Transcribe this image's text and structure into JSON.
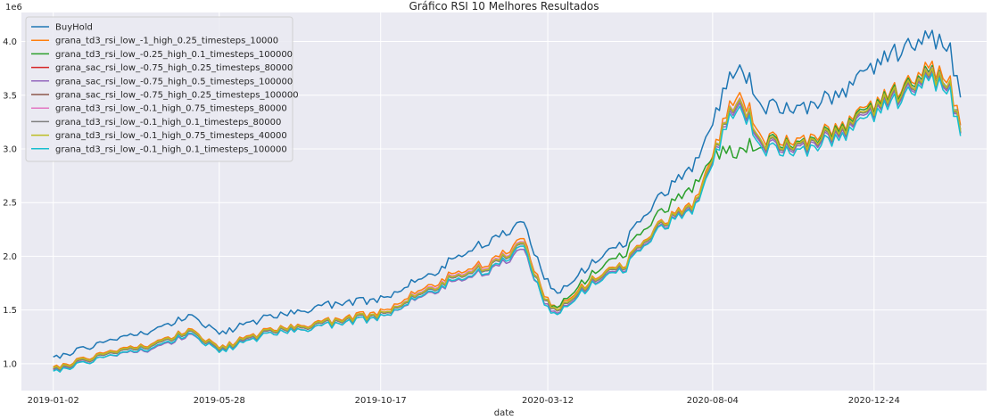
{
  "chart_data": {
    "type": "line",
    "title": "Gráfico RSI 10 Melhores Resultados",
    "xlabel": "date",
    "ylabel": "",
    "y_scale_label": "1e6",
    "x_tick_labels": [
      "2019-01-02",
      "2019-05-28",
      "2019-10-17",
      "2020-03-12",
      "2020-08-04",
      "2020-12-24"
    ],
    "y_ticks": [
      1.0,
      1.5,
      2.0,
      2.5,
      3.0,
      3.5,
      4.0
    ],
    "ylim": [
      0.75,
      4.27
    ],
    "grid": true,
    "legend_position": "top-left",
    "x": [
      "2019-01-02",
      "2019-02-15",
      "2019-04-01",
      "2019-05-01",
      "2019-05-28",
      "2019-07-15",
      "2019-09-01",
      "2019-10-17",
      "2019-12-01",
      "2020-01-20",
      "2020-02-20",
      "2020-03-12",
      "2020-03-23",
      "2020-04-20",
      "2020-05-20",
      "2020-06-20",
      "2020-07-20",
      "2020-08-04",
      "2020-08-25",
      "2020-09-20",
      "2020-10-20",
      "2020-11-20",
      "2020-12-24",
      "2021-01-20",
      "2021-02-10",
      "2021-03-01",
      "2021-03-10"
    ],
    "series": [
      {
        "name": "BuyHold",
        "color": "#1f77b4",
        "values": [
          1.05,
          1.2,
          1.3,
          1.45,
          1.28,
          1.45,
          1.55,
          1.6,
          1.85,
          2.15,
          2.3,
          1.75,
          1.68,
          1.95,
          2.15,
          2.55,
          2.85,
          3.3,
          3.8,
          3.4,
          3.35,
          3.5,
          3.75,
          3.95,
          4.08,
          3.9,
          3.48
        ]
      },
      {
        "name": "grana_td3_rsi_low_-1_high_0.25_timesteps_10000",
        "color": "#ff7f0e",
        "values": [
          0.96,
          1.1,
          1.18,
          1.32,
          1.15,
          1.33,
          1.4,
          1.48,
          1.75,
          1.95,
          2.15,
          1.58,
          1.55,
          1.8,
          1.95,
          2.3,
          2.5,
          3.0,
          3.55,
          3.1,
          3.05,
          3.2,
          3.4,
          3.6,
          3.8,
          3.6,
          3.22
        ]
      },
      {
        "name": "grana_td3_rsi_low_-0.25_high_0.1_timesteps_100000",
        "color": "#2ca02c",
        "values": [
          0.95,
          1.09,
          1.17,
          1.31,
          1.14,
          1.32,
          1.39,
          1.46,
          1.72,
          1.92,
          2.12,
          1.56,
          1.56,
          1.85,
          2.05,
          2.4,
          2.65,
          2.98,
          2.98,
          3.08,
          3.02,
          3.18,
          3.38,
          3.58,
          3.76,
          3.56,
          3.18
        ]
      },
      {
        "name": "grana_sac_rsi_low_-0.75_high_0.25_timesteps_80000",
        "color": "#d62728",
        "values": [
          0.94,
          1.08,
          1.16,
          1.3,
          1.13,
          1.31,
          1.38,
          1.45,
          1.71,
          1.91,
          2.1,
          1.55,
          1.52,
          1.78,
          1.93,
          2.28,
          2.47,
          2.96,
          3.48,
          3.05,
          3.0,
          3.15,
          3.35,
          3.55,
          3.72,
          3.55,
          3.15
        ]
      },
      {
        "name": "grana_sac_rsi_low_-0.75_high_0.5_timesteps_100000",
        "color": "#9467bd",
        "values": [
          0.93,
          1.06,
          1.13,
          1.27,
          1.12,
          1.29,
          1.36,
          1.43,
          1.68,
          1.87,
          2.05,
          1.52,
          1.5,
          1.76,
          1.91,
          2.26,
          2.45,
          2.94,
          3.45,
          3.03,
          2.98,
          3.13,
          3.33,
          3.53,
          3.7,
          3.53,
          3.14
        ]
      },
      {
        "name": "grana_sac_rsi_low_-0.75_high_0.25_timesteps_100000",
        "color": "#8c564b",
        "values": [
          0.94,
          1.08,
          1.16,
          1.3,
          1.13,
          1.31,
          1.38,
          1.45,
          1.71,
          1.91,
          2.1,
          1.55,
          1.52,
          1.78,
          1.93,
          2.28,
          2.47,
          2.96,
          3.48,
          3.05,
          3.0,
          3.15,
          3.35,
          3.55,
          3.72,
          3.55,
          3.15
        ]
      },
      {
        "name": "grana_td3_rsi_low_-0.1_high_0.75_timesteps_80000",
        "color": "#e377c2",
        "values": [
          0.95,
          1.09,
          1.17,
          1.31,
          1.14,
          1.32,
          1.39,
          1.46,
          1.73,
          1.93,
          2.12,
          1.56,
          1.53,
          1.79,
          1.94,
          2.29,
          2.48,
          2.97,
          3.5,
          3.06,
          3.01,
          3.16,
          3.36,
          3.56,
          3.74,
          3.56,
          3.17
        ]
      },
      {
        "name": "grana_td3_rsi_low_-0.1_high_0.1_timesteps_80000",
        "color": "#7f7f7f",
        "values": [
          0.94,
          1.08,
          1.16,
          1.3,
          1.13,
          1.31,
          1.38,
          1.45,
          1.71,
          1.91,
          2.1,
          1.55,
          1.52,
          1.78,
          1.93,
          2.28,
          2.47,
          2.96,
          3.48,
          3.05,
          3.0,
          3.15,
          3.35,
          3.55,
          3.72,
          3.55,
          3.15
        ]
      },
      {
        "name": "grana_td3_rsi_low_-0.1_high_0.75_timesteps_40000",
        "color": "#bcbd22",
        "values": [
          0.95,
          1.09,
          1.17,
          1.31,
          1.14,
          1.32,
          1.39,
          1.46,
          1.72,
          1.92,
          2.11,
          1.56,
          1.53,
          1.79,
          1.94,
          2.29,
          2.48,
          2.97,
          3.49,
          3.06,
          3.01,
          3.16,
          3.36,
          3.56,
          3.73,
          3.56,
          3.16
        ]
      },
      {
        "name": "grana_td3_rsi_low_-0.1_high_0.1_timesteps_100000",
        "color": "#17becf",
        "values": [
          0.92,
          1.06,
          1.14,
          1.28,
          1.11,
          1.29,
          1.36,
          1.43,
          1.69,
          1.88,
          2.08,
          1.5,
          1.49,
          1.75,
          1.9,
          2.25,
          2.44,
          2.92,
          3.42,
          3.0,
          2.95,
          3.1,
          3.3,
          3.5,
          3.68,
          3.5,
          3.12
        ]
      }
    ]
  }
}
